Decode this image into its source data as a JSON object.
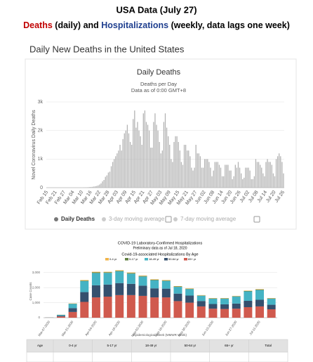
{
  "header": {
    "title": "USA Data (July 27)",
    "subtitle_parts": [
      {
        "text": "Deaths",
        "color": "#c00000"
      },
      {
        "text": " (daily) and ",
        "color": "#000000"
      },
      {
        "text": "Hospitalizations",
        "color": "#1f3f8f"
      },
      {
        "text": " (weekly, data lags one week)",
        "color": "#000000"
      }
    ],
    "page_heading": "Daily New Deaths in the United States"
  },
  "chart_data": [
    {
      "type": "bar",
      "title": "Daily Deaths",
      "subtitle": "Deaths per Day",
      "note": "Data as of 0:00 GMT+8",
      "y_label": "Novel Coronavirus Daily Deaths",
      "color": "#b3b3b3",
      "categories": [
        "Feb 15",
        null,
        null,
        null,
        null,
        null,
        "Feb 21",
        null,
        null,
        null,
        null,
        null,
        "Feb 27",
        null,
        null,
        null,
        null,
        null,
        "Mar 04",
        null,
        null,
        null,
        null,
        null,
        "Mar 10",
        null,
        null,
        null,
        null,
        null,
        "Mar 16",
        null,
        null,
        null,
        null,
        null,
        "Mar 22",
        null,
        null,
        null,
        null,
        null,
        "Mar 28",
        null,
        null,
        null,
        null,
        null,
        "Apr 03",
        null,
        null,
        null,
        null,
        null,
        "Apr 09",
        null,
        null,
        null,
        null,
        null,
        "Apr 15",
        null,
        null,
        null,
        null,
        null,
        "Apr 21",
        null,
        null,
        null,
        null,
        null,
        "Apr 27",
        null,
        null,
        null,
        null,
        null,
        "May 03",
        null,
        null,
        null,
        null,
        null,
        "May 09",
        null,
        null,
        null,
        null,
        null,
        "May 15",
        null,
        null,
        null,
        null,
        null,
        "May 21",
        null,
        null,
        null,
        null,
        null,
        "May 27",
        null,
        null,
        null,
        null,
        null,
        "Jun 02",
        null,
        null,
        null,
        null,
        null,
        "Jun 08",
        null,
        null,
        null,
        null,
        null,
        "Jun 14",
        null,
        null,
        null,
        null,
        null,
        "Jun 20",
        null,
        null,
        null,
        null,
        null,
        "Jun 26",
        null,
        null,
        null,
        null,
        null,
        "Jul 02",
        null,
        null,
        null,
        null,
        null,
        "Jul 08",
        null,
        null,
        null,
        null,
        null,
        "Jul 14",
        null,
        null,
        null,
        null,
        null,
        "Jul 20",
        null,
        null,
        null,
        null,
        null,
        "Jul 26"
      ],
      "values": [
        0,
        0,
        0,
        0,
        0,
        0,
        0,
        0,
        0,
        0,
        0,
        0,
        0,
        0,
        0,
        1,
        0,
        1,
        2,
        2,
        1,
        1,
        3,
        4,
        3,
        8,
        10,
        12,
        15,
        20,
        25,
        30,
        40,
        50,
        60,
        80,
        110,
        150,
        220,
        270,
        380,
        430,
        530,
        560,
        750,
        900,
        1000,
        1100,
        1200,
        1300,
        1500,
        1300,
        1700,
        1900,
        2000,
        2200,
        1900,
        1600,
        1500,
        2400,
        2700,
        2100,
        2300,
        2000,
        1800,
        1500,
        2600,
        2700,
        2300,
        2200,
        2000,
        1400,
        1400,
        2300,
        2600,
        2200,
        2000,
        1600,
        1200,
        1300,
        2300,
        2600,
        2100,
        1800,
        1500,
        1000,
        900,
        1600,
        1800,
        1800,
        1600,
        1300,
        900,
        800,
        1500,
        1500,
        1300,
        1300,
        1100,
        700,
        600,
        700,
        1500,
        1200,
        1200,
        1100,
        700,
        700,
        1000,
        1000,
        1000,
        900,
        700,
        400,
        600,
        900,
        900,
        900,
        800,
        700,
        400,
        400,
        800,
        800,
        800,
        600,
        600,
        300,
        400,
        800,
        700,
        900,
        700,
        500,
        300,
        350,
        700,
        700,
        700,
        600,
        300,
        300,
        400,
        1000,
        900,
        900,
        800,
        700,
        500,
        400,
        900,
        1000,
        900,
        900,
        800,
        500,
        400,
        1000,
        1100,
        1200,
        1100,
        900,
        500
      ],
      "ylim": [
        0,
        3000
      ],
      "yticks": [
        0,
        {
          "value": 1000,
          "label": "1k"
        },
        {
          "value": 2000,
          "label": "2k"
        },
        {
          "value": 3000,
          "label": "3k"
        }
      ],
      "grid": true,
      "legend": [
        "Daily Deaths",
        "3-day moving average",
        "7-day moving average"
      ]
    },
    {
      "type": "bar",
      "stacked": true,
      "title": "COVID-19 Laboratory-Confirmed Hospitalizations",
      "subtitle": "Preliminary data as of Jul 18, 2020",
      "chart_title": "Covid-19-associated Hospitalizations By Age",
      "y_label": "Case Counts",
      "x_label": "Epidemiological Week (MMWR Week)",
      "categories": [
        "Mar-07-2020",
        null,
        "Mar-21-2020",
        null,
        "Apr-04-2020",
        null,
        "Apr-18-2020",
        null,
        "May-02-2020",
        null,
        "May-16-2020",
        null,
        "May-30-2020",
        null,
        "Jun-13-2020",
        null,
        "Jun-27-2020",
        null,
        "Jul-11-2020",
        null
      ],
      "series": [
        {
          "name": "0-4 yr",
          "color": "#f0b347",
          "values": [
            1,
            5,
            15,
            35,
            40,
            35,
            35,
            35,
            30,
            30,
            30,
            25,
            25,
            20,
            20,
            20,
            20,
            25,
            30,
            20
          ]
        },
        {
          "name": "5-17 yr",
          "color": "#5f7f3f",
          "values": [
            1,
            5,
            15,
            35,
            40,
            35,
            35,
            35,
            30,
            30,
            30,
            25,
            25,
            20,
            20,
            20,
            20,
            25,
            30,
            20
          ]
        },
        {
          "name": "18-49 yr",
          "color": "#45b3c4",
          "values": [
            5,
            55,
            280,
            730,
            820,
            780,
            780,
            680,
            610,
            540,
            510,
            450,
            430,
            350,
            350,
            370,
            470,
            630,
            650,
            400
          ]
        },
        {
          "name": "50-64 yr",
          "color": "#35506e",
          "values": [
            5,
            55,
            260,
            650,
            800,
            800,
            800,
            750,
            680,
            600,
            580,
            500,
            470,
            360,
            310,
            310,
            340,
            420,
            440,
            300
          ]
        },
        {
          "name": "65+ yr",
          "color": "#d05a4e",
          "values": [
            8,
            80,
            380,
            1050,
            1350,
            1400,
            1500,
            1500,
            1450,
            1350,
            1350,
            1100,
            1000,
            750,
            600,
            580,
            600,
            700,
            750,
            560
          ]
        }
      ],
      "ylim": [
        0,
        3500
      ],
      "yticks": [
        0,
        {
          "value": 1000,
          "label": "1,000"
        },
        {
          "value": 2000,
          "label": "2,000"
        },
        {
          "value": 3000,
          "label": "3,000"
        }
      ],
      "grid": true
    }
  ],
  "table": {
    "headers": [
      "Age",
      "0-4 yr",
      "5-17 yr",
      "18-49 yr",
      "50-64 yr",
      "65+ yr",
      "Total"
    ]
  }
}
